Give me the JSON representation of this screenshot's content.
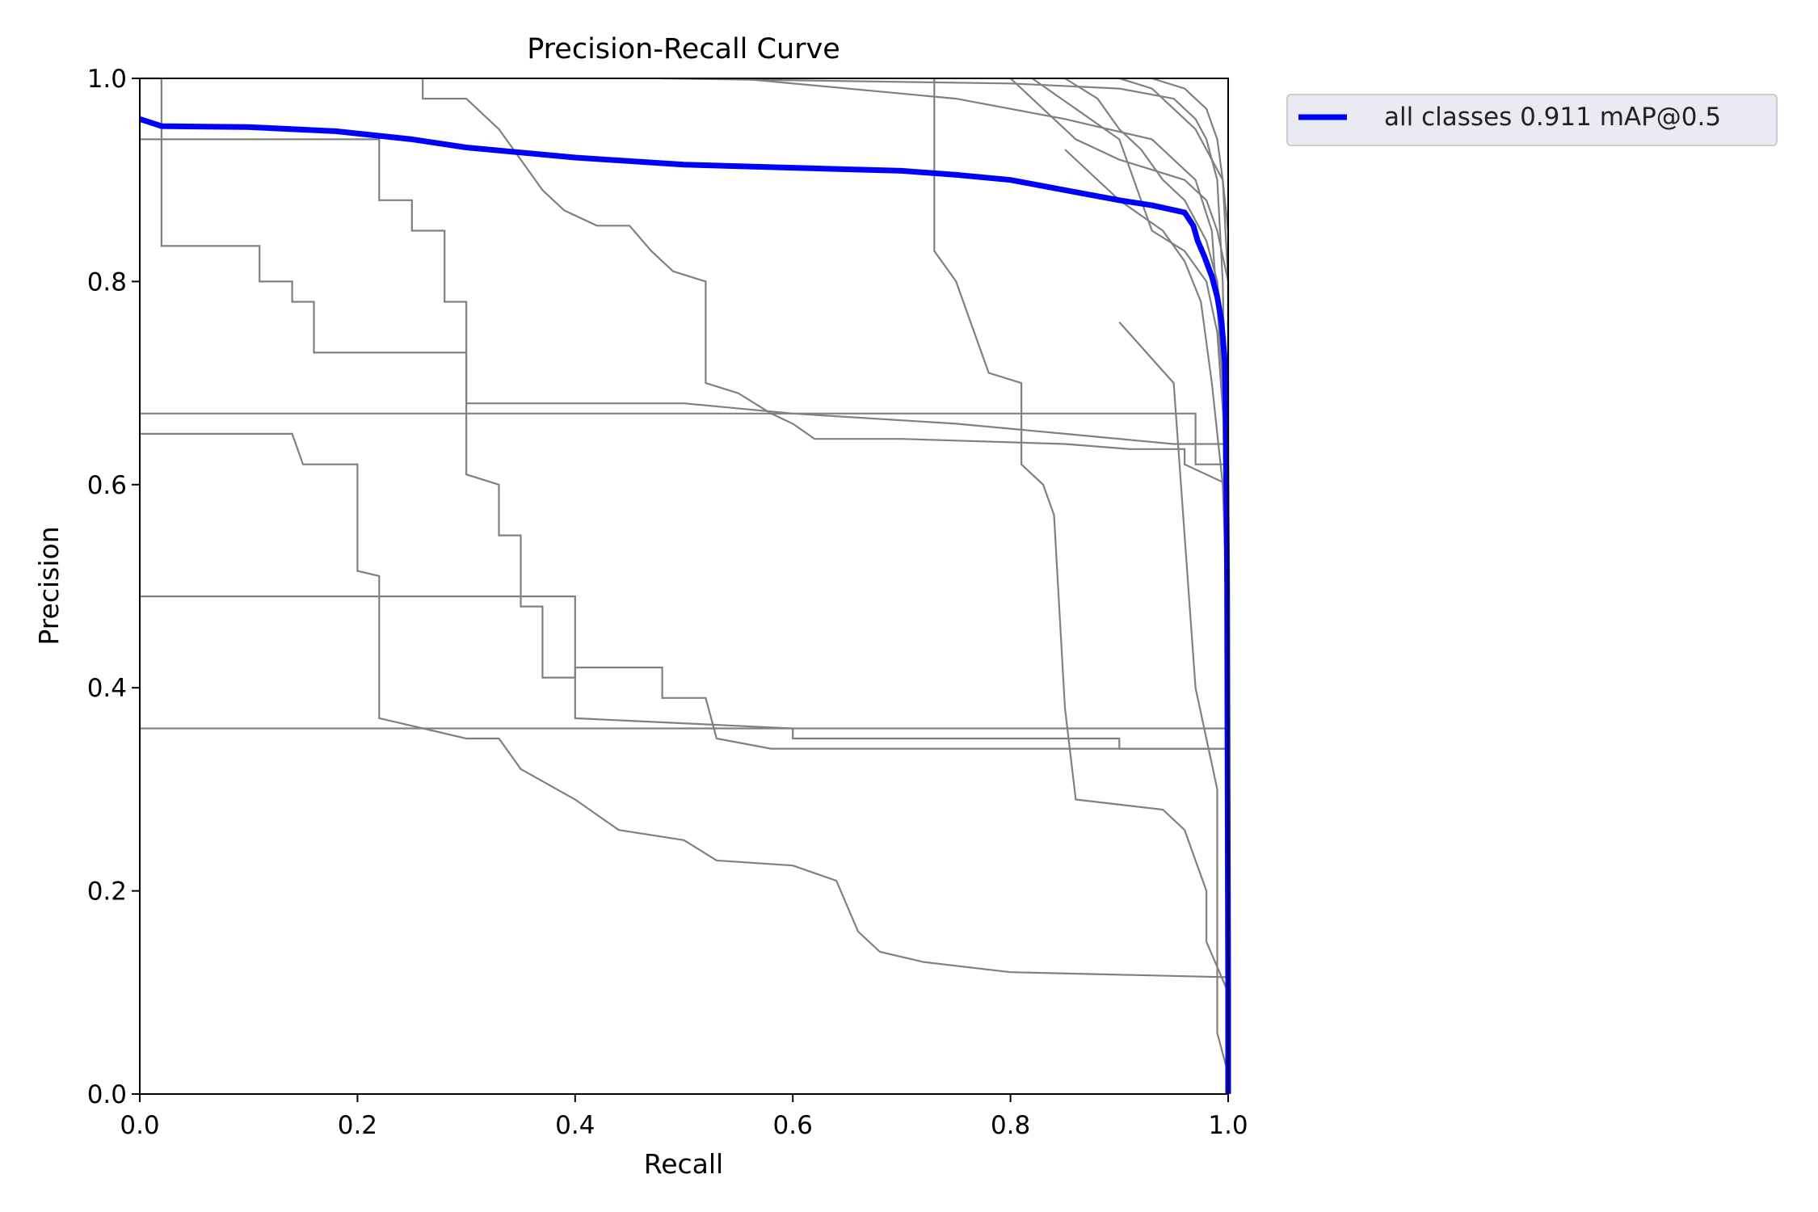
{
  "chart_data": {
    "type": "line",
    "title": "Precision-Recall Curve",
    "xlabel": "Recall",
    "ylabel": "Precision",
    "xlim": [
      0,
      1
    ],
    "ylim": [
      0,
      1
    ],
    "xticks": [
      "0.0",
      "0.2",
      "0.4",
      "0.6",
      "0.8",
      "1.0"
    ],
    "yticks": [
      "0.0",
      "0.2",
      "0.4",
      "0.6",
      "0.8",
      "1.0"
    ],
    "grid": false,
    "legend": {
      "placement": "outside-top-right",
      "entries": [
        "all classes 0.911 mAP@0.5"
      ]
    },
    "colors": {
      "main": "#0000ff",
      "classes": "#808080",
      "legend_bg": "#eaeaf2"
    },
    "series": [
      {
        "name": "all classes 0.911 mAP@0.5",
        "points": [
          [
            0,
            0.96
          ],
          [
            0.02,
            0.953
          ],
          [
            0.1,
            0.952
          ],
          [
            0.18,
            0.948
          ],
          [
            0.25,
            0.94
          ],
          [
            0.3,
            0.932
          ],
          [
            0.4,
            0.922
          ],
          [
            0.5,
            0.915
          ],
          [
            0.6,
            0.912
          ],
          [
            0.7,
            0.909
          ],
          [
            0.75,
            0.905
          ],
          [
            0.8,
            0.9
          ],
          [
            0.85,
            0.89
          ],
          [
            0.9,
            0.88
          ],
          [
            0.93,
            0.875
          ],
          [
            0.96,
            0.868
          ],
          [
            0.968,
            0.855
          ],
          [
            0.972,
            0.84
          ],
          [
            0.978,
            0.825
          ],
          [
            0.985,
            0.805
          ],
          [
            0.99,
            0.785
          ],
          [
            0.994,
            0.76
          ],
          [
            0.997,
            0.72
          ],
          [
            0.998,
            0.65
          ],
          [
            0.999,
            0.5
          ],
          [
            0.9995,
            0.3
          ],
          [
            1,
            0.1
          ],
          [
            1,
            0
          ]
        ]
      }
    ],
    "class_curves": [
      [
        [
          0,
          0.67
        ],
        [
          0.97,
          0.67
        ],
        [
          0.97,
          0.62
        ],
        [
          1,
          0.62
        ],
        [
          1,
          0
        ]
      ],
      [
        [
          0,
          0.36
        ],
        [
          1,
          0.36
        ],
        [
          1,
          0
        ]
      ],
      [
        [
          0,
          0.49
        ],
        [
          0.4,
          0.49
        ],
        [
          0.4,
          0.37
        ],
        [
          0.6,
          0.36
        ],
        [
          0.6,
          0.35
        ],
        [
          0.9,
          0.35
        ],
        [
          0.9,
          0.34
        ],
        [
          1,
          0.34
        ],
        [
          1,
          0
        ]
      ],
      [
        [
          0,
          0.65
        ],
        [
          0.14,
          0.65
        ],
        [
          0.15,
          0.62
        ],
        [
          0.2,
          0.62
        ],
        [
          0.2,
          0.515
        ],
        [
          0.22,
          0.51
        ],
        [
          0.22,
          0.37
        ],
        [
          0.3,
          0.35
        ],
        [
          0.33,
          0.35
        ],
        [
          0.35,
          0.32
        ],
        [
          0.4,
          0.29
        ],
        [
          0.44,
          0.26
        ],
        [
          0.5,
          0.25
        ],
        [
          0.53,
          0.23
        ],
        [
          0.6,
          0.225
        ],
        [
          0.64,
          0.21
        ],
        [
          0.66,
          0.16
        ],
        [
          0.68,
          0.14
        ],
        [
          0.72,
          0.13
        ],
        [
          0.8,
          0.12
        ],
        [
          1,
          0.115
        ],
        [
          1,
          0
        ]
      ],
      [
        [
          0,
          1
        ],
        [
          0.02,
          1
        ],
        [
          0.02,
          0.835
        ],
        [
          0.11,
          0.835
        ],
        [
          0.11,
          0.8
        ],
        [
          0.14,
          0.8
        ],
        [
          0.14,
          0.78
        ],
        [
          0.16,
          0.78
        ],
        [
          0.16,
          0.73
        ],
        [
          0.3,
          0.73
        ],
        [
          0.3,
          0.61
        ],
        [
          0.33,
          0.6
        ],
        [
          0.33,
          0.55
        ],
        [
          0.35,
          0.55
        ],
        [
          0.35,
          0.48
        ],
        [
          0.37,
          0.48
        ],
        [
          0.37,
          0.41
        ],
        [
          0.4,
          0.41
        ],
        [
          0.4,
          0.42
        ],
        [
          0.48,
          0.42
        ],
        [
          0.48,
          0.39
        ],
        [
          0.52,
          0.39
        ],
        [
          0.53,
          0.35
        ],
        [
          0.58,
          0.34
        ],
        [
          1,
          0.34
        ],
        [
          1,
          0
        ]
      ],
      [
        [
          0,
          0.94
        ],
        [
          0.22,
          0.94
        ],
        [
          0.22,
          0.88
        ],
        [
          0.25,
          0.88
        ],
        [
          0.25,
          0.85
        ],
        [
          0.28,
          0.85
        ],
        [
          0.28,
          0.78
        ],
        [
          0.3,
          0.78
        ],
        [
          0.3,
          0.68
        ],
        [
          0.5,
          0.68
        ],
        [
          0.6,
          0.67
        ],
        [
          0.75,
          0.66
        ],
        [
          0.85,
          0.65
        ],
        [
          0.95,
          0.64
        ],
        [
          1,
          0.64
        ],
        [
          1,
          0
        ]
      ],
      [
        [
          0.26,
          1
        ],
        [
          0.26,
          0.98
        ],
        [
          0.3,
          0.98
        ],
        [
          0.33,
          0.95
        ],
        [
          0.35,
          0.92
        ],
        [
          0.37,
          0.89
        ],
        [
          0.39,
          0.87
        ],
        [
          0.42,
          0.855
        ],
        [
          0.45,
          0.855
        ],
        [
          0.47,
          0.83
        ],
        [
          0.49,
          0.81
        ],
        [
          0.52,
          0.8
        ],
        [
          0.52,
          0.7
        ],
        [
          0.55,
          0.69
        ],
        [
          0.58,
          0.67
        ],
        [
          0.6,
          0.66
        ],
        [
          0.62,
          0.645
        ],
        [
          0.7,
          0.645
        ],
        [
          0.85,
          0.64
        ],
        [
          0.91,
          0.635
        ],
        [
          0.96,
          0.635
        ],
        [
          0.96,
          0.62
        ],
        [
          1,
          0.6
        ],
        [
          1,
          0
        ]
      ],
      [
        [
          0.73,
          1
        ],
        [
          0.73,
          0.83
        ],
        [
          0.75,
          0.8
        ],
        [
          0.76,
          0.77
        ],
        [
          0.78,
          0.71
        ],
        [
          0.81,
          0.7
        ],
        [
          0.81,
          0.62
        ],
        [
          0.83,
          0.6
        ],
        [
          0.84,
          0.57
        ],
        [
          0.85,
          0.38
        ],
        [
          0.86,
          0.29
        ],
        [
          0.94,
          0.28
        ],
        [
          0.96,
          0.26
        ],
        [
          0.98,
          0.2
        ],
        [
          0.98,
          0.15
        ],
        [
          1,
          0.1
        ],
        [
          1,
          0
        ]
      ],
      [
        [
          0.9,
          0.76
        ],
        [
          0.95,
          0.7
        ],
        [
          0.97,
          0.4
        ],
        [
          0.99,
          0.3
        ],
        [
          0.99,
          0.06
        ],
        [
          1,
          0.02
        ],
        [
          1,
          0
        ]
      ],
      [
        [
          0.48,
          1
        ],
        [
          0.8,
          0.995
        ],
        [
          0.9,
          0.99
        ],
        [
          0.95,
          0.98
        ],
        [
          0.97,
          0.96
        ],
        [
          0.98,
          0.94
        ],
        [
          0.99,
          0.9
        ],
        [
          0.995,
          0.8
        ],
        [
          1,
          0.5
        ],
        [
          1,
          0
        ]
      ],
      [
        [
          0.8,
          1
        ],
        [
          0.84,
          0.96
        ],
        [
          0.86,
          0.94
        ],
        [
          0.88,
          0.93
        ],
        [
          0.9,
          0.92
        ],
        [
          0.93,
          0.91
        ],
        [
          0.96,
          0.9
        ],
        [
          0.98,
          0.88
        ],
        [
          0.99,
          0.85
        ],
        [
          1,
          0.8
        ],
        [
          1,
          0
        ]
      ],
      [
        [
          0.85,
          1
        ],
        [
          0.88,
          0.98
        ],
        [
          0.9,
          0.95
        ],
        [
          0.92,
          0.93
        ],
        [
          0.94,
          0.9
        ],
        [
          0.96,
          0.88
        ],
        [
          0.98,
          0.84
        ],
        [
          0.99,
          0.8
        ],
        [
          1,
          0.7
        ],
        [
          1,
          0
        ]
      ],
      [
        [
          0.82,
          1
        ],
        [
          0.86,
          0.97
        ],
        [
          0.9,
          0.94
        ],
        [
          0.93,
          0.85
        ],
        [
          0.96,
          0.83
        ],
        [
          0.98,
          0.8
        ],
        [
          0.99,
          0.75
        ],
        [
          1,
          0.6
        ],
        [
          1,
          0
        ]
      ],
      [
        [
          0.9,
          1
        ],
        [
          0.93,
          0.99
        ],
        [
          0.95,
          0.97
        ],
        [
          0.97,
          0.95
        ],
        [
          0.985,
          0.92
        ],
        [
          0.995,
          0.9
        ],
        [
          1,
          0.85
        ],
        [
          1,
          0
        ]
      ],
      [
        [
          0.85,
          0.93
        ],
        [
          0.9,
          0.88
        ],
        [
          0.94,
          0.85
        ],
        [
          0.96,
          0.82
        ],
        [
          0.975,
          0.78
        ],
        [
          0.985,
          0.7
        ],
        [
          0.995,
          0.6
        ],
        [
          1,
          0.45
        ],
        [
          1,
          0
        ]
      ],
      [
        [
          0.55,
          1
        ],
        [
          0.75,
          0.98
        ],
        [
          0.85,
          0.96
        ],
        [
          0.93,
          0.94
        ],
        [
          0.97,
          0.9
        ],
        [
          0.985,
          0.85
        ],
        [
          0.995,
          0.7
        ],
        [
          1,
          0.3
        ],
        [
          1,
          0
        ]
      ],
      [
        [
          0.93,
          1
        ],
        [
          0.96,
          0.99
        ],
        [
          0.98,
          0.97
        ],
        [
          0.99,
          0.94
        ],
        [
          0.995,
          0.9
        ],
        [
          1,
          0.8
        ],
        [
          1,
          0
        ]
      ]
    ]
  }
}
